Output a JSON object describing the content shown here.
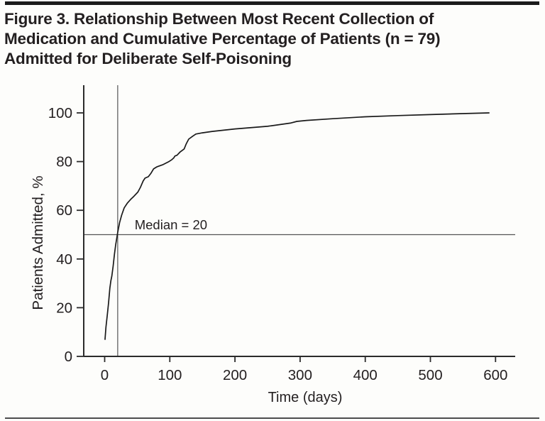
{
  "figure": {
    "title": "Figure 3. Relationship Between Most Recent Collection of Medication and Cumulative Percentage of Patients (n = 79) Admitted for Deliberate Self-Poisoning",
    "title_lines": [
      "Figure 3. Relationship Between Most Recent Collection of",
      "Medication and Cumulative Percentage of Patients (n = 79)",
      "Admitted for Deliberate Self-Poisoning"
    ]
  },
  "chart_data": {
    "type": "line",
    "title": "Figure 3. Relationship Between Most Recent Collection of Medication and Cumulative Percentage of Patients (n = 79) Admitted for Deliberate Self-Poisoning",
    "xlabel": "Time (days)",
    "ylabel": "Patients Admitted, %",
    "xlim": [
      0,
      630
    ],
    "ylim": [
      0,
      111
    ],
    "x_ticks": [
      0,
      100,
      200,
      300,
      400,
      500,
      600
    ],
    "y_ticks": [
      0,
      20,
      40,
      60,
      80,
      100
    ],
    "grid": false,
    "legend": "none",
    "reference_lines": {
      "horizontal_y": 50,
      "vertical_x": 20
    },
    "annotations": [
      {
        "text": "Median = 20",
        "x": 46,
        "y": 54
      }
    ],
    "series": [
      {
        "name": "Cumulative percentage of patients admitted",
        "points": [
          [
            0.5,
            7
          ],
          [
            2,
            12
          ],
          [
            4,
            17
          ],
          [
            6,
            22
          ],
          [
            8,
            28
          ],
          [
            9.5,
            31
          ],
          [
            11,
            33
          ],
          [
            13,
            37
          ],
          [
            15,
            42
          ],
          [
            17,
            46
          ],
          [
            20,
            51
          ],
          [
            23,
            55
          ],
          [
            26,
            58
          ],
          [
            30,
            61
          ],
          [
            35,
            63
          ],
          [
            40,
            64.5
          ],
          [
            44,
            65.5
          ],
          [
            51,
            67.5
          ],
          [
            55,
            69.5
          ],
          [
            59,
            72
          ],
          [
            62,
            73.2
          ],
          [
            67,
            73.8
          ],
          [
            71,
            75.2
          ],
          [
            75,
            77
          ],
          [
            80,
            77.8
          ],
          [
            89,
            78.7
          ],
          [
            98,
            79.9
          ],
          [
            103,
            80.8
          ],
          [
            106,
            81.5
          ],
          [
            108,
            82.3
          ],
          [
            111,
            82.6
          ],
          [
            116,
            84
          ],
          [
            122,
            85.2
          ],
          [
            125,
            87.2
          ],
          [
            129,
            89.2
          ],
          [
            135,
            90.4
          ],
          [
            140,
            91.3
          ],
          [
            150,
            91.8
          ],
          [
            165,
            92.4
          ],
          [
            200,
            93.4
          ],
          [
            250,
            94.5
          ],
          [
            285,
            95.8
          ],
          [
            295,
            96.5
          ],
          [
            310,
            96.9
          ],
          [
            350,
            97.6
          ],
          [
            400,
            98.4
          ],
          [
            450,
            98.9
          ],
          [
            500,
            99.3
          ],
          [
            550,
            99.7
          ],
          [
            590,
            100
          ]
        ]
      }
    ]
  },
  "colors": {
    "curve": "#1a1a1a",
    "axis": "#2b2b2b",
    "reference_line": "#555555",
    "top_rule": "#1b1b1b",
    "bottom_rule": "#4d4d4d",
    "text": "#231f20"
  }
}
